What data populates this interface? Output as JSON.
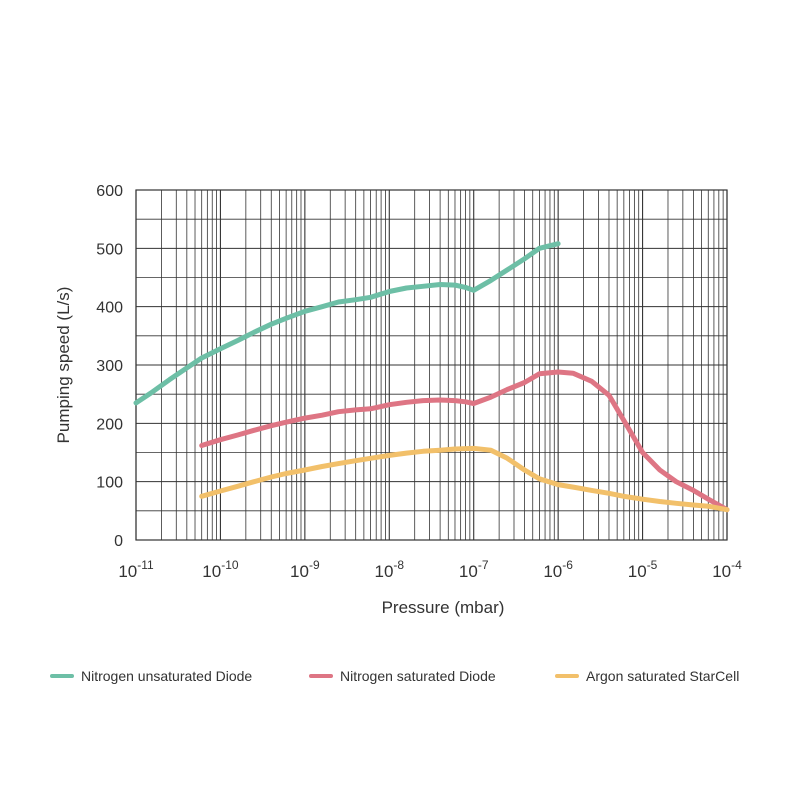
{
  "chart_data": {
    "type": "line",
    "xlabel": "Pressure (mbar)",
    "ylabel": "Pumping speed (L/s)",
    "x_scale": "log",
    "xlim": [
      1e-11,
      0.0001
    ],
    "ylim": [
      0,
      600
    ],
    "x_ticks": [
      {
        "base": "10",
        "exp": "-11"
      },
      {
        "base": "10",
        "exp": "-10"
      },
      {
        "base": "10",
        "exp": "-9"
      },
      {
        "base": "10",
        "exp": "-8"
      },
      {
        "base": "10",
        "exp": "-7"
      },
      {
        "base": "10",
        "exp": "-6"
      },
      {
        "base": "10",
        "exp": "-5"
      },
      {
        "base": "10",
        "exp": "-4"
      }
    ],
    "y_ticks": [
      "0",
      "100",
      "200",
      "300",
      "400",
      "500",
      "600"
    ],
    "y_tick_values": [
      0,
      100,
      200,
      300,
      400,
      500,
      600
    ],
    "grid": true,
    "legend_position": "bottom",
    "series": [
      {
        "name": "Nitrogen unsaturated Diode",
        "color": "#6dbfa6",
        "points": [
          [
            1e-11,
            235
          ],
          [
            1.5e-11,
            252
          ],
          [
            2.5e-11,
            275
          ],
          [
            4e-11,
            295
          ],
          [
            6e-11,
            312
          ],
          [
            1e-10,
            328
          ],
          [
            1.6e-10,
            342
          ],
          [
            2.5e-10,
            356
          ],
          [
            4e-10,
            370
          ],
          [
            6e-10,
            380
          ],
          [
            1e-09,
            392
          ],
          [
            1.6e-09,
            400
          ],
          [
            2.5e-09,
            408
          ],
          [
            4e-09,
            412
          ],
          [
            6e-09,
            416
          ],
          [
            1e-08,
            426
          ],
          [
            1.6e-08,
            432
          ],
          [
            2.5e-08,
            435
          ],
          [
            4e-08,
            438
          ],
          [
            6e-08,
            437
          ],
          [
            8e-08,
            433
          ],
          [
            1e-07,
            428
          ],
          [
            1.6e-07,
            445
          ],
          [
            2.5e-07,
            463
          ],
          [
            4e-07,
            482
          ],
          [
            6e-07,
            500
          ],
          [
            1e-06,
            508
          ]
        ]
      },
      {
        "name": "Nitrogen saturated Diode",
        "color": "#de7584",
        "points": [
          [
            6e-11,
            162
          ],
          [
            1e-10,
            172
          ],
          [
            1.6e-10,
            180
          ],
          [
            2.5e-10,
            188
          ],
          [
            4e-10,
            196
          ],
          [
            6e-10,
            202
          ],
          [
            1e-09,
            209
          ],
          [
            1.6e-09,
            214
          ],
          [
            2.5e-09,
            220
          ],
          [
            4e-09,
            223
          ],
          [
            6e-09,
            225
          ],
          [
            1e-08,
            232
          ],
          [
            1.6e-08,
            236
          ],
          [
            2.5e-08,
            239
          ],
          [
            4e-08,
            240
          ],
          [
            6e-08,
            239
          ],
          [
            8e-08,
            237
          ],
          [
            1e-07,
            234
          ],
          [
            1.6e-07,
            245
          ],
          [
            2.5e-07,
            258
          ],
          [
            4e-07,
            270
          ],
          [
            6e-07,
            285
          ],
          [
            1e-06,
            288
          ],
          [
            1.5e-06,
            286
          ],
          [
            2.5e-06,
            272
          ],
          [
            4e-06,
            248
          ],
          [
            6e-06,
            205
          ],
          [
            1e-05,
            150
          ],
          [
            1.6e-05,
            120
          ],
          [
            2.5e-05,
            100
          ],
          [
            4e-05,
            85
          ],
          [
            6e-05,
            70
          ],
          [
            0.0001,
            52
          ]
        ]
      },
      {
        "name": "Argon saturated StarCell",
        "color": "#f2c06a",
        "points": [
          [
            6e-11,
            75
          ],
          [
            1e-10,
            84
          ],
          [
            1.6e-10,
            92
          ],
          [
            2.5e-10,
            100
          ],
          [
            4e-10,
            108
          ],
          [
            6e-10,
            114
          ],
          [
            1e-09,
            120
          ],
          [
            1.6e-09,
            126
          ],
          [
            2.5e-09,
            131
          ],
          [
            4e-09,
            136
          ],
          [
            6e-09,
            140
          ],
          [
            1e-08,
            145
          ],
          [
            1.6e-08,
            149
          ],
          [
            2.5e-08,
            152
          ],
          [
            4e-08,
            154
          ],
          [
            6e-08,
            156
          ],
          [
            1e-07,
            157
          ],
          [
            1.6e-07,
            154
          ],
          [
            2.5e-07,
            140
          ],
          [
            4e-07,
            120
          ],
          [
            6e-07,
            105
          ],
          [
            1e-06,
            95
          ],
          [
            1.6e-06,
            90
          ],
          [
            2.5e-06,
            85
          ],
          [
            4e-06,
            80
          ],
          [
            6e-06,
            75
          ],
          [
            1e-05,
            70
          ],
          [
            1.6e-05,
            66
          ],
          [
            2.5e-05,
            63
          ],
          [
            4e-05,
            60
          ],
          [
            6e-05,
            58
          ],
          [
            0.0001,
            52
          ]
        ]
      }
    ]
  }
}
